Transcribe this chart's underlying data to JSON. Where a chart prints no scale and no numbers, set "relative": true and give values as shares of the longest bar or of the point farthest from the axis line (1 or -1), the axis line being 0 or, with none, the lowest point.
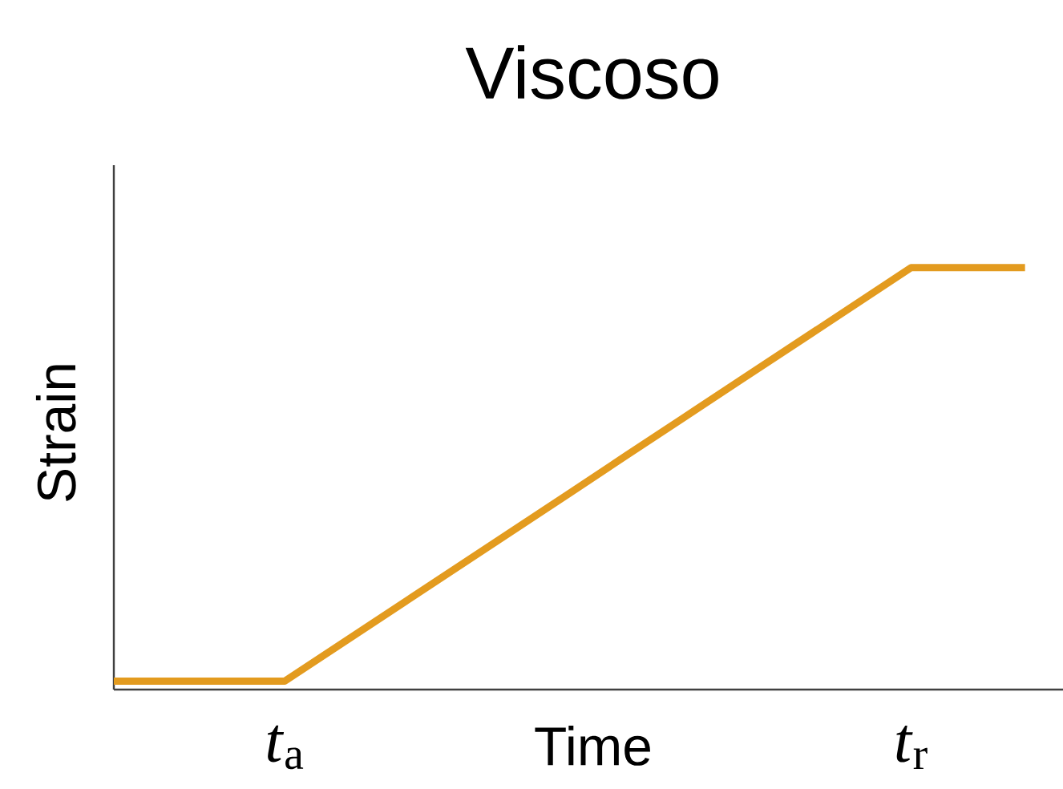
{
  "chart_data": {
    "type": "line",
    "title": "Viscoso",
    "xlabel": "Time",
    "ylabel": "Strain",
    "relative": true,
    "categories": [
      null,
      null,
      null,
      "*t*$_{a}$",
      null,
      null,
      null,
      null,
      null,
      null,
      null,
      null,
      null,
      null,
      "*t*$_{r}$",
      null,
      null
    ],
    "series": [
      {
        "color": "#e39b1f",
        "values": [
          0.02,
          0.02,
          0.02,
          0.02,
          0.109,
          0.198,
          0.287,
          0.376,
          0.465,
          0.555,
          0.644,
          0.733,
          0.822,
          0.911,
          1,
          1,
          1
        ]
      }
    ]
  }
}
